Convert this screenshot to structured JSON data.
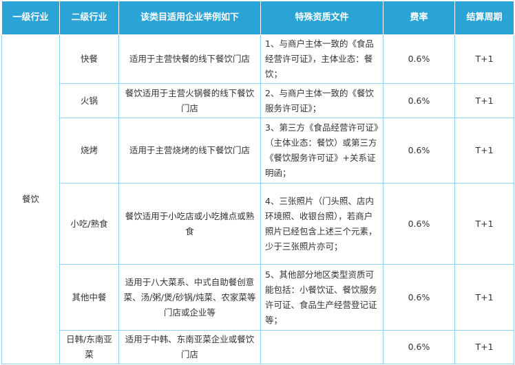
{
  "headers": {
    "level1": "一级行业",
    "level2": "二级行业",
    "examples": "该类目适用企业举例如下",
    "documents": "特殊资质文件",
    "rate": "费率",
    "settlement": "结算周期"
  },
  "industry": "餐饮",
  "rows": [
    {
      "category": "快餐",
      "example": "适用于主营快餐的线下餐饮门店",
      "document": "1、与商户主体一致的《食品经营许可证》，主体业态：餐饮；",
      "rate": "0.6%",
      "settlement": "T+1"
    },
    {
      "category": "火锅",
      "example": "餐饮适用于主营火锅餐的线下餐饮门店",
      "document": "2、与商户主体一致的《餐饮服务许可证》；",
      "rate": "0.6%",
      "settlement": "T+1"
    },
    {
      "category": "烧烤",
      "example": "适用于主营烧烤的线下餐饮门店",
      "document": "3、第三方《食品经营许可证》（主体业态：餐饮）或第三方《餐饮服务许可证》+关系证明函；",
      "rate": "0.6%",
      "settlement": "T+1"
    },
    {
      "category": "小吃/熟食",
      "example": "餐饮适用于小吃店或小吃摊点或熟食",
      "document": "4、三张照片（门头照、店内环境照、收银台照），若商户照片已经包含上述三个元素，少于三张照片亦可；",
      "rate": "0.6%",
      "settlement": "T+1"
    },
    {
      "category": "其他中餐",
      "example": "适用于八大菜系、中式自助餐创意菜、汤/粥/煲/砂锅/炖菜、农家菜等门店或企业等",
      "document": "5、其他部分地区类型资质可能包括：小餐饮证、餐饮服务许可证、食品生产经营登记证等；",
      "rate": "0.6%",
      "settlement": "T+1"
    },
    {
      "category": "日韩/东南亚菜",
      "example": "适用于中韩、东南亚菜企业或餐饮门店",
      "document": "",
      "rate": "0.6%",
      "settlement": "T+1"
    }
  ]
}
